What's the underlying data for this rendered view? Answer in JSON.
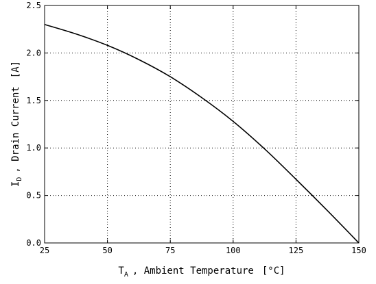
{
  "chart_data": {
    "type": "line",
    "title": "",
    "xlabel": {
      "symbol": "T",
      "subscript": "A",
      "text": ", Ambient Temperature",
      "unit": "[°C]"
    },
    "ylabel": {
      "symbol": "I",
      "subscript": "D",
      "text": ", Drain Current",
      "unit": "[A]"
    },
    "xlim": [
      25,
      150
    ],
    "ylim": [
      0,
      2.5
    ],
    "xticks": [
      25,
      50,
      75,
      100,
      125,
      150
    ],
    "xtick_labels": [
      "25",
      "50",
      "75",
      "100",
      "125",
      "150"
    ],
    "yticks": [
      0,
      0.5,
      1.0,
      1.5,
      2.0,
      2.5
    ],
    "ytick_labels": [
      "0.0",
      "0.5",
      "1.0",
      "1.5",
      "2.0",
      "2.5"
    ],
    "grid": true,
    "grid_style": "dotted",
    "series": [
      {
        "color": "#000000",
        "x": [
          25,
          37.5,
          50,
          62.5,
          75,
          87.5,
          100,
          112.5,
          125,
          137.5,
          150
        ],
        "y": [
          2.3,
          2.2,
          2.08,
          1.93,
          1.75,
          1.53,
          1.28,
          0.99,
          0.67,
          0.34,
          0.0
        ]
      }
    ]
  }
}
